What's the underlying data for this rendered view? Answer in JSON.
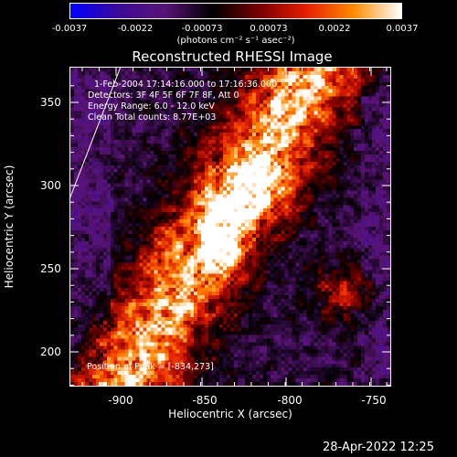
{
  "colorbar": {
    "tick_labels": [
      "-0.0037",
      "-0.0022",
      "-0.00073",
      "0.00073",
      "0.0022",
      "0.0037"
    ],
    "units": "(photons cm⁻² s⁻¹ asec⁻²)",
    "range": [
      -0.0037,
      0.0037
    ],
    "colors": [
      "#0000ff",
      "#3b0b9a",
      "#5a1478",
      "#000000",
      "#7a0000",
      "#e62000",
      "#ff8c00",
      "#ffffff"
    ]
  },
  "plot": {
    "title": "Reconstructed RHESSI Image",
    "xlabel": "Heliocentric X (arcsec)",
    "ylabel": "Heliocentric Y (arcsec)",
    "x_ticks": [
      "-900",
      "-850",
      "-800",
      "-750"
    ],
    "y_ticks": [
      "350",
      "300",
      "250",
      "200"
    ],
    "xlim": [
      -934,
      -739
    ],
    "ylim": [
      177,
      372
    ],
    "info": [
      "1-Feb-2004 17:14:16.000 to 17:16:36.000",
      "Detectors: 3F 4F 5F 6F 7F 8F, Att 0",
      "Energy Range: 6.0 - 12.0 keV",
      "Clean    Total counts: 8.77E+03"
    ],
    "peak": "Position of Peak = [-834,273]"
  },
  "timestamp": "28-Apr-2022 12:25"
}
